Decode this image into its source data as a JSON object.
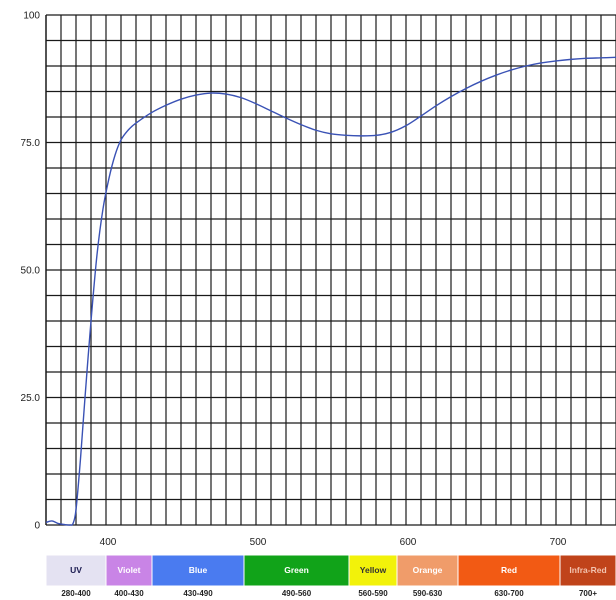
{
  "chart_data": {
    "type": "line",
    "title": "",
    "xlabel": "",
    "ylabel": "",
    "xlim": [
      360,
      740
    ],
    "ylim": [
      0,
      100
    ],
    "x_ticks": [
      400,
      500,
      600,
      700
    ],
    "y_ticks": [
      {
        "value": 0,
        "label": "0"
      },
      {
        "value": 25,
        "label": "25.0"
      },
      {
        "value": 50,
        "label": "50.0"
      },
      {
        "value": 75,
        "label": "75.0"
      },
      {
        "value": 100,
        "label": "100"
      }
    ],
    "grid": true,
    "line_color": "#3a52b5",
    "series": [
      {
        "x": [
          360,
          364,
          368,
          372,
          376,
          378,
          380,
          383,
          386,
          390,
          394,
          398,
          402,
          406,
          410,
          415,
          420,
          430,
          440,
          450,
          460,
          470,
          480,
          490,
          500,
          510,
          520,
          530,
          540,
          550,
          560,
          570,
          580,
          590,
          600,
          610,
          620,
          630,
          640,
          650,
          660,
          670,
          680,
          690,
          700,
          710,
          720,
          730,
          740
        ],
        "y": [
          0.5,
          0.8,
          0.3,
          0.1,
          0.0,
          0.3,
          3.0,
          13.0,
          25.0,
          40.0,
          53.0,
          62.0,
          68.0,
          72.5,
          75.5,
          77.5,
          78.8,
          80.8,
          82.3,
          83.5,
          84.3,
          84.7,
          84.5,
          83.8,
          82.6,
          81.2,
          79.8,
          78.5,
          77.4,
          76.7,
          76.4,
          76.3,
          76.4,
          77.0,
          78.3,
          80.2,
          82.2,
          84.0,
          85.6,
          87.0,
          88.2,
          89.2,
          90.0,
          90.6,
          91.0,
          91.3,
          91.5,
          91.6,
          91.7
        ]
      }
    ]
  },
  "bands": [
    {
      "name": "UV",
      "range": "280-400",
      "color": "#e4e2f2",
      "text_color": "#1a1a50"
    },
    {
      "name": "Violet",
      "range": "400-430",
      "color": "#c984e6",
      "text_color": "#ffffff"
    },
    {
      "name": "Blue",
      "range": "430-490",
      "color": "#4a7bf0",
      "text_color": "#ffffff"
    },
    {
      "name": "Green",
      "range": "490-560",
      "color": "#11a319",
      "text_color": "#ffffff"
    },
    {
      "name": "Yellow",
      "range": "560-590",
      "color": "#f2f20a",
      "text_color": "#333333"
    },
    {
      "name": "Orange",
      "range": "590-630",
      "color": "#f09c6a",
      "text_color": "#ffffff"
    },
    {
      "name": "Red",
      "range": "630-700",
      "color": "#f25a14",
      "text_color": "#ffffff"
    },
    {
      "name": "Infra-Red",
      "range": "700+",
      "color": "#c0431a",
      "text_color": "#f3c3b0"
    }
  ]
}
